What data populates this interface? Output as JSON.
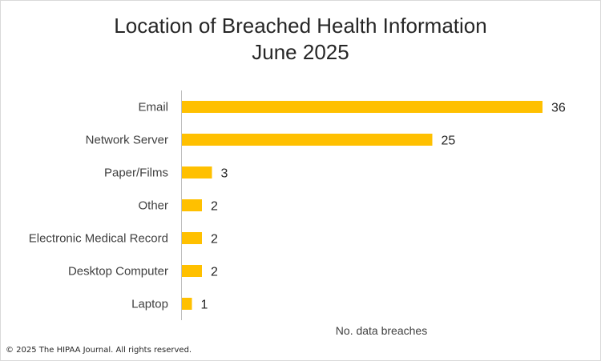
{
  "chart_data": {
    "type": "bar",
    "orientation": "horizontal",
    "title": "Location of Breached Health Information",
    "subtitle": "June 2025",
    "xlabel": "No. data breaches",
    "ylabel": "",
    "categories": [
      "Email",
      "Network Server",
      "Paper/Films",
      "Other",
      "Electronic Medical Record",
      "Desktop Computer",
      "Laptop"
    ],
    "values": [
      36,
      25,
      3,
      2,
      2,
      2,
      1
    ],
    "xlim": [
      0,
      36
    ],
    "grid": false,
    "legend": "none",
    "data_labels": true,
    "bar_color": "#FFC000"
  },
  "footer": {
    "copyright": "© 2025 The HIPAA Journal. All rights reserved."
  }
}
